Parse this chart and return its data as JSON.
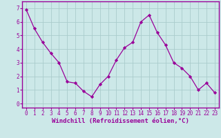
{
  "x": [
    0,
    1,
    2,
    3,
    4,
    5,
    6,
    7,
    8,
    9,
    10,
    11,
    12,
    13,
    14,
    15,
    16,
    17,
    18,
    19,
    20,
    21,
    22,
    23
  ],
  "y": [
    6.9,
    5.5,
    4.5,
    3.7,
    3.0,
    1.6,
    1.5,
    0.9,
    0.5,
    1.4,
    2.0,
    3.2,
    4.1,
    4.5,
    6.0,
    6.5,
    5.2,
    4.3,
    3.0,
    2.6,
    2.0,
    1.0,
    1.5,
    0.8
  ],
  "line_color": "#990099",
  "marker": "D",
  "marker_size": 2.2,
  "bg_color": "#cce8e8",
  "grid_color": "#aacccc",
  "xlabel": "Windchill (Refroidissement éolien,°C)",
  "xlabel_color": "#990099",
  "xlabel_fontsize": 6.5,
  "ylabel_ticks": [
    0,
    1,
    2,
    3,
    4,
    5,
    6,
    7
  ],
  "xlim": [
    -0.5,
    23.5
  ],
  "ylim": [
    -0.3,
    7.5
  ],
  "tick_fontsize": 5.5,
  "tick_color": "#990099",
  "spine_color": "#990099",
  "linewidth": 0.9
}
